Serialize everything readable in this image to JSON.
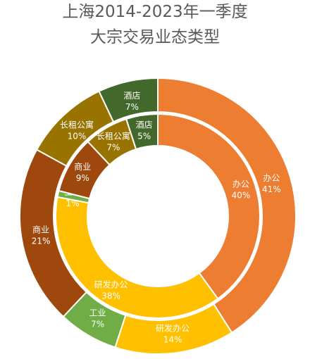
{
  "chart_data": {
    "type": "pie",
    "title_lines": [
      "上海2014-2023年一季度",
      "大宗交易业态类型"
    ],
    "rings": [
      {
        "ring": "outer",
        "slices": [
          {
            "name": "办公",
            "value": 41,
            "label": "41%",
            "color": "#ED7D31"
          },
          {
            "name": "研发办公",
            "value": 14,
            "label": "14%",
            "color": "#FFC000"
          },
          {
            "name": "工业",
            "value": 7,
            "label": "7%",
            "color": "#70AD47"
          },
          {
            "name": "商业",
            "value": 21,
            "label": "21%",
            "color": "#9E480E"
          },
          {
            "name": "长租公寓",
            "value": 10,
            "label": "10%",
            "color": "#997300"
          },
          {
            "name": "酒店",
            "value": 7,
            "label": "7%",
            "color": "#43682B"
          }
        ]
      },
      {
        "ring": "inner",
        "slices": [
          {
            "name": "办公",
            "value": 40,
            "label": "40%",
            "color": "#ED7D31"
          },
          {
            "name": "研发办公",
            "value": 38,
            "label": "38%",
            "color": "#FFC000"
          },
          {
            "name": "工业",
            "value": 1,
            "label": "1%",
            "color": "#70AD47"
          },
          {
            "name": "商业",
            "value": 9,
            "label": "9%",
            "color": "#9E480E"
          },
          {
            "name": "长租公寓",
            "value": 7,
            "label": "7%",
            "color": "#997300"
          },
          {
            "name": "酒店",
            "value": 5,
            "label": "5%",
            "color": "#43682B"
          }
        ]
      }
    ]
  }
}
